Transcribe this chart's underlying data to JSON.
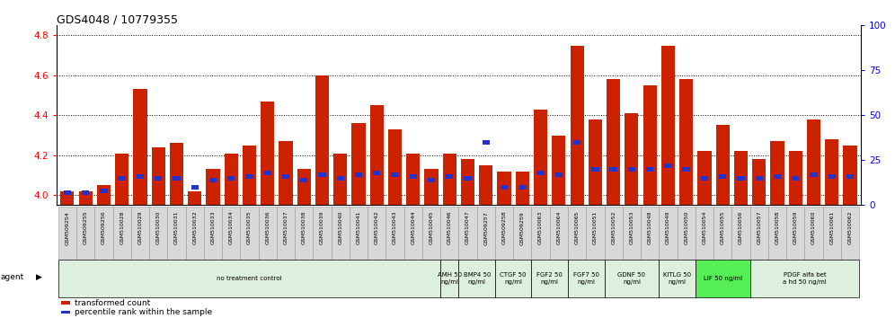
{
  "title": "GDS4048 / 10779355",
  "samples": [
    "GSM509254",
    "GSM509255",
    "GSM509256",
    "GSM510028",
    "GSM510029",
    "GSM510030",
    "GSM510031",
    "GSM510032",
    "GSM510033",
    "GSM510034",
    "GSM510035",
    "GSM510036",
    "GSM510037",
    "GSM510038",
    "GSM510039",
    "GSM510040",
    "GSM510041",
    "GSM510042",
    "GSM510043",
    "GSM510044",
    "GSM510045",
    "GSM510046",
    "GSM510047",
    "GSM509257",
    "GSM509258",
    "GSM509259",
    "GSM510063",
    "GSM510064",
    "GSM510065",
    "GSM510051",
    "GSM510052",
    "GSM510053",
    "GSM510048",
    "GSM510049",
    "GSM510050",
    "GSM510054",
    "GSM510055",
    "GSM510056",
    "GSM510057",
    "GSM510058",
    "GSM510059",
    "GSM510060",
    "GSM510061",
    "GSM510062"
  ],
  "red_values": [
    4.02,
    4.02,
    4.05,
    4.21,
    4.53,
    4.24,
    4.26,
    4.02,
    4.13,
    4.21,
    4.25,
    4.47,
    4.27,
    4.13,
    4.6,
    4.21,
    4.36,
    4.45,
    4.33,
    4.21,
    4.13,
    4.21,
    4.18,
    4.15,
    4.12,
    4.12,
    4.43,
    4.3,
    4.75,
    4.38,
    4.58,
    4.41,
    4.55,
    4.75,
    4.58,
    4.22,
    4.35,
    4.22,
    4.18,
    4.27,
    4.22,
    4.38,
    4.28,
    4.25
  ],
  "blue_values_pct": [
    7,
    7,
    8,
    15,
    16,
    15,
    15,
    10,
    14,
    15,
    16,
    18,
    16,
    14,
    17,
    15,
    17,
    18,
    17,
    16,
    14,
    16,
    15,
    35,
    10,
    10,
    18,
    17,
    35,
    20,
    20,
    20,
    20,
    22,
    20,
    15,
    16,
    15,
    15,
    16,
    15,
    17,
    16,
    16
  ],
  "ylim_left": [
    3.95,
    4.85
  ],
  "ylim_right": [
    0,
    100
  ],
  "yticks_left": [
    4.0,
    4.2,
    4.4,
    4.6,
    4.8
  ],
  "yticks_right": [
    0,
    25,
    50,
    75,
    100
  ],
  "bar_color_red": "#cc2200",
  "bar_color_blue": "#2233cc",
  "agent_groups": [
    {
      "label": "no treatment control",
      "start": 0,
      "end": 21,
      "color": "#ddf0dd"
    },
    {
      "label": "AMH 50\nng/ml",
      "start": 21,
      "end": 22,
      "color": "#ddf0dd"
    },
    {
      "label": "BMP4 50\nng/ml",
      "start": 22,
      "end": 24,
      "color": "#ddf0dd"
    },
    {
      "label": "CTGF 50\nng/ml",
      "start": 24,
      "end": 26,
      "color": "#ddf0dd"
    },
    {
      "label": "FGF2 50\nng/ml",
      "start": 26,
      "end": 28,
      "color": "#ddf0dd"
    },
    {
      "label": "FGF7 50\nng/ml",
      "start": 28,
      "end": 30,
      "color": "#ddf0dd"
    },
    {
      "label": "GDNF 50\nng/ml",
      "start": 30,
      "end": 33,
      "color": "#ddf0dd"
    },
    {
      "label": "KITLG 50\nng/ml",
      "start": 33,
      "end": 35,
      "color": "#ddf0dd"
    },
    {
      "label": "LIF 50 ng/ml",
      "start": 35,
      "end": 38,
      "color": "#55ee55"
    },
    {
      "label": "PDGF alfa bet\na hd 50 ng/ml",
      "start": 38,
      "end": 44,
      "color": "#ddf0dd"
    }
  ]
}
